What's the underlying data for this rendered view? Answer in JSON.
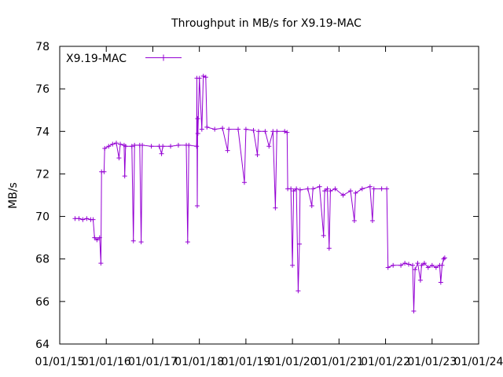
{
  "chart_data": {
    "type": "line",
    "title": "Throughput in MB/s for X9.19-MAC",
    "xlabel": "",
    "ylabel": "MB/s",
    "ylim": [
      64,
      78
    ],
    "xlim": [
      "2015-01-01",
      "2024-01-01"
    ],
    "y_ticks": [
      "64",
      "66",
      "68",
      "70",
      "72",
      "74",
      "76",
      "78"
    ],
    "x_ticks": [
      "01/01/15",
      "01/01/16",
      "01/01/17",
      "01/01/18",
      "01/01/19",
      "01/01/20",
      "01/01/21",
      "01/01/22",
      "01/01/23",
      "01/01/24"
    ],
    "legend_position": "top-left",
    "grid": false,
    "colors": {
      "series": "#9400d3",
      "axes": "#000000"
    },
    "series": [
      {
        "name": "X9.19-MAC",
        "points": [
          [
            "2015-05-01",
            69.9
          ],
          [
            "2015-06-01",
            69.9
          ],
          [
            "2015-07-01",
            69.85
          ],
          [
            "2015-08-01",
            69.9
          ],
          [
            "2015-09-01",
            69.85
          ],
          [
            "2015-09-20",
            69.85
          ],
          [
            "2015-10-01",
            69.0
          ],
          [
            "2015-10-20",
            68.9
          ],
          [
            "2015-11-10",
            69.0
          ],
          [
            "2015-11-20",
            67.8
          ],
          [
            "2015-11-25",
            72.1
          ],
          [
            "2015-12-15",
            72.1
          ],
          [
            "2015-12-20",
            73.2
          ],
          [
            "2016-01-20",
            73.3
          ],
          [
            "2016-02-20",
            73.4
          ],
          [
            "2016-03-20",
            73.45
          ],
          [
            "2016-04-10",
            72.75
          ],
          [
            "2016-04-20",
            73.4
          ],
          [
            "2016-05-20",
            73.35
          ],
          [
            "2016-05-25",
            71.9
          ],
          [
            "2016-06-01",
            73.3
          ],
          [
            "2016-07-20",
            73.3
          ],
          [
            "2016-08-01",
            68.85
          ],
          [
            "2016-08-10",
            73.35
          ],
          [
            "2016-09-20",
            73.35
          ],
          [
            "2016-10-01",
            68.8
          ],
          [
            "2016-10-10",
            73.35
          ],
          [
            "2016-12-20",
            73.3
          ],
          [
            "2017-02-20",
            73.3
          ],
          [
            "2017-03-10",
            72.95
          ],
          [
            "2017-03-20",
            73.3
          ],
          [
            "2017-05-20",
            73.3
          ],
          [
            "2017-07-20",
            73.35
          ],
          [
            "2017-09-20",
            73.35
          ],
          [
            "2017-10-01",
            68.8
          ],
          [
            "2017-10-10",
            73.35
          ],
          [
            "2017-12-10",
            73.3
          ],
          [
            "2017-12-12",
            76.5
          ],
          [
            "2017-12-15",
            70.5
          ],
          [
            "2017-12-18",
            74.6
          ],
          [
            "2017-12-20",
            73.9
          ],
          [
            "2018-01-01",
            76.5
          ],
          [
            "2018-01-20",
            74.1
          ],
          [
            "2018-02-01",
            76.6
          ],
          [
            "2018-02-20",
            76.55
          ],
          [
            "2018-03-01",
            74.2
          ],
          [
            "2018-05-01",
            74.1
          ],
          [
            "2018-07-01",
            74.15
          ],
          [
            "2018-08-10",
            73.1
          ],
          [
            "2018-08-20",
            74.1
          ],
          [
            "2018-11-01",
            74.1
          ],
          [
            "2018-12-20",
            71.6
          ],
          [
            "2019-01-01",
            74.1
          ],
          [
            "2019-03-01",
            74.05
          ],
          [
            "2019-04-01",
            72.9
          ],
          [
            "2019-04-10",
            74.0
          ],
          [
            "2019-06-01",
            74.0
          ],
          [
            "2019-07-01",
            73.3
          ],
          [
            "2019-08-01",
            74.0
          ],
          [
            "2019-08-20",
            70.4
          ],
          [
            "2019-09-01",
            74.0
          ],
          [
            "2019-11-01",
            74.0
          ],
          [
            "2019-11-20",
            73.95
          ],
          [
            "2019-11-25",
            71.3
          ],
          [
            "2019-12-20",
            71.3
          ],
          [
            "2020-01-01",
            67.7
          ],
          [
            "2020-01-10",
            71.2
          ],
          [
            "2020-02-01",
            71.3
          ],
          [
            "2020-02-15",
            66.5
          ],
          [
            "2020-02-25",
            68.7
          ],
          [
            "2020-03-01",
            71.25
          ],
          [
            "2020-05-01",
            71.3
          ],
          [
            "2020-06-01",
            70.5
          ],
          [
            "2020-06-10",
            71.3
          ],
          [
            "2020-08-01",
            71.4
          ],
          [
            "2020-09-01",
            69.1
          ],
          [
            "2020-09-10",
            71.2
          ],
          [
            "2020-10-01",
            71.3
          ],
          [
            "2020-10-15",
            68.5
          ],
          [
            "2020-10-25",
            71.2
          ],
          [
            "2020-12-01",
            71.3
          ],
          [
            "2021-02-01",
            71.0
          ],
          [
            "2021-04-01",
            71.2
          ],
          [
            "2021-05-01",
            69.8
          ],
          [
            "2021-05-10",
            71.1
          ],
          [
            "2021-07-01",
            71.3
          ],
          [
            "2021-09-01",
            71.4
          ],
          [
            "2021-09-20",
            69.8
          ],
          [
            "2021-10-01",
            71.3
          ],
          [
            "2021-12-01",
            71.3
          ],
          [
            "2022-01-10",
            71.3
          ],
          [
            "2022-01-20",
            67.6
          ],
          [
            "2022-03-01",
            67.7
          ],
          [
            "2022-05-01",
            67.7
          ],
          [
            "2022-06-01",
            67.8
          ],
          [
            "2022-07-01",
            67.75
          ],
          [
            "2022-08-01",
            67.7
          ],
          [
            "2022-08-10",
            65.55
          ],
          [
            "2022-08-20",
            67.5
          ],
          [
            "2022-09-10",
            67.8
          ],
          [
            "2022-10-01",
            67.0
          ],
          [
            "2022-10-10",
            67.7
          ],
          [
            "2022-11-01",
            67.8
          ],
          [
            "2022-12-01",
            67.6
          ],
          [
            "2023-01-01",
            67.7
          ],
          [
            "2023-02-01",
            67.6
          ],
          [
            "2023-03-01",
            67.7
          ],
          [
            "2023-03-10",
            66.9
          ],
          [
            "2023-03-20",
            67.7
          ],
          [
            "2023-04-01",
            68.0
          ],
          [
            "2023-04-10",
            68.05
          ]
        ]
      }
    ]
  }
}
